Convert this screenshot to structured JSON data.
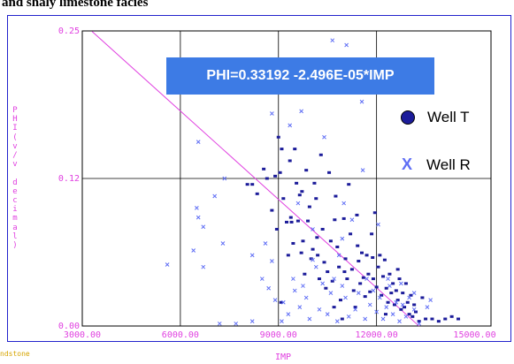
{
  "caption": "and shaly limestone facies",
  "equation": "PHI=0.33192 -2.496E-05*IMP",
  "corner_text": "ndstone",
  "colors": {
    "well_t": "#1c1c9a",
    "well_r": "#5f6ef5",
    "trend": "#e040e0",
    "axis_text": "#e040e0",
    "frame": "#2222cc",
    "equation_box": "#3d7be5"
  },
  "chart_data": {
    "type": "scatter",
    "xlabel": "IMP",
    "ylabel": "PHI(v/v decimal)",
    "xlim": [
      3000,
      15500
    ],
    "ylim": [
      0,
      0.25
    ],
    "x_ticks": [
      {
        "value": 3000,
        "label": "3000.00"
      },
      {
        "value": 6000,
        "label": "6000.00"
      },
      {
        "value": 9000,
        "label": "9000.00"
      },
      {
        "value": 12000,
        "label": "12000.00"
      },
      {
        "value": 15000,
        "label": "15000.00"
      }
    ],
    "y_ticks": [
      {
        "value": 0,
        "label": "0.00"
      },
      {
        "value": 0.125,
        "label": "0.12"
      },
      {
        "value": 0.25,
        "label": "0.25"
      }
    ],
    "grid_x": [
      6000,
      9000,
      12000
    ],
    "grid_y": [
      0.125
    ],
    "grid": true,
    "legend": "right",
    "trend_line": {
      "intercept": 0.33192,
      "slope": -2.496e-05,
      "x_from": 3300,
      "x_to": 13300
    },
    "series": [
      {
        "name": "Well T",
        "marker": "dot",
        "points": [
          [
            8050,
            0.12
          ],
          [
            8200,
            0.12
          ],
          [
            8350,
            0.112
          ],
          [
            8550,
            0.133
          ],
          [
            8650,
            0.125
          ],
          [
            8800,
            0.098
          ],
          [
            8900,
            0.127
          ],
          [
            8950,
            0.082
          ],
          [
            9000,
            0.16
          ],
          [
            9050,
            0.13
          ],
          [
            9100,
            0.15
          ],
          [
            9150,
            0.108
          ],
          [
            9250,
            0.088
          ],
          [
            9300,
            0.06
          ],
          [
            9350,
            0.14
          ],
          [
            9400,
            0.088
          ],
          [
            9450,
            0.07
          ],
          [
            9500,
            0.15
          ],
          [
            9550,
            0.121
          ],
          [
            9600,
            0.089
          ],
          [
            9650,
            0.111
          ],
          [
            9700,
            0.062
          ],
          [
            9750,
            0.072
          ],
          [
            9800,
            0.044
          ],
          [
            9850,
            0.132
          ],
          [
            9900,
            0.089
          ],
          [
            9950,
            0.101
          ],
          [
            10000,
            0.057
          ],
          [
            10050,
            0.065
          ],
          [
            10100,
            0.121
          ],
          [
            10150,
            0.108
          ],
          [
            10200,
            0.06
          ],
          [
            10250,
            0.04
          ],
          [
            10300,
            0.145
          ],
          [
            10350,
            0.082
          ],
          [
            10400,
            0.054
          ],
          [
            10450,
            0.032
          ],
          [
            10500,
            0.046
          ],
          [
            10550,
            0.13
          ],
          [
            10600,
            0.072
          ],
          [
            10650,
            0.038
          ],
          [
            10700,
            0.016
          ],
          [
            10750,
            0.11
          ],
          [
            10800,
            0.067
          ],
          [
            10850,
            0.05
          ],
          [
            10900,
            0.022
          ],
          [
            10950,
            0.006
          ],
          [
            11000,
            0.091
          ],
          [
            11050,
            0.057
          ],
          [
            11100,
            0.04
          ],
          [
            11150,
            0.12
          ],
          [
            11200,
            0.078
          ],
          [
            11250,
            0.048
          ],
          [
            11300,
            0.03
          ],
          [
            11350,
            0.016
          ],
          [
            11400,
            0.094
          ],
          [
            11450,
            0.055
          ],
          [
            11500,
            0.036
          ],
          [
            11550,
            0.062
          ],
          [
            11600,
            0.041
          ],
          [
            11650,
            0.025
          ],
          [
            11700,
            0.06
          ],
          [
            11750,
            0.044
          ],
          [
            11800,
            0.029
          ],
          [
            11850,
            0.078
          ],
          [
            11900,
            0.04
          ],
          [
            11950,
            0.096
          ],
          [
            12000,
            0.033
          ],
          [
            12050,
            0.05
          ],
          [
            12100,
            0.06
          ],
          [
            12150,
            0.026
          ],
          [
            12200,
            0.042
          ],
          [
            12250,
            0.056
          ],
          [
            12300,
            0.032
          ],
          [
            12350,
            0.02
          ],
          [
            12400,
            0.044
          ],
          [
            12450,
            0.028
          ],
          [
            12500,
            0.036
          ],
          [
            12550,
            0.018
          ],
          [
            12600,
            0.03
          ],
          [
            12650,
            0.022
          ],
          [
            12700,
            0.04
          ],
          [
            12750,
            0.014
          ],
          [
            12800,
            0.028
          ],
          [
            12850,
            0.016
          ],
          [
            12900,
            0.036
          ],
          [
            12950,
            0.02
          ],
          [
            13000,
            0.01
          ],
          [
            13050,
            0.026
          ],
          [
            13100,
            0.008
          ],
          [
            13150,
            0.018
          ],
          [
            13200,
            0.012
          ],
          [
            13300,
            0.004
          ],
          [
            13500,
            0.006
          ],
          [
            13700,
            0.006
          ],
          [
            13900,
            0.004
          ],
          [
            14100,
            0.006
          ],
          [
            14300,
            0.008
          ],
          [
            14500,
            0.006
          ],
          [
            9080,
            0.02
          ],
          [
            9380,
            0.092
          ],
          [
            9720,
            0.114
          ],
          [
            10180,
            0.075
          ],
          [
            10720,
            0.09
          ],
          [
            11020,
            0.046
          ],
          [
            11420,
            0.068
          ],
          [
            11880,
            0.058
          ],
          [
            12280,
            0.01
          ],
          [
            12650,
            0.048
          ],
          [
            13400,
            0.024
          ]
        ]
      },
      {
        "name": "Well R",
        "marker": "x",
        "points": [
          [
            5600,
            0.052
          ],
          [
            6400,
            0.064
          ],
          [
            6700,
            0.05
          ],
          [
            6500,
            0.1
          ],
          [
            6550,
            0.092
          ],
          [
            6700,
            0.084
          ],
          [
            7050,
            0.11
          ],
          [
            7300,
            0.07
          ],
          [
            7350,
            0.125
          ],
          [
            7200,
            0.002
          ],
          [
            7700,
            0.002
          ],
          [
            8200,
            0.004
          ],
          [
            8600,
            0.07
          ],
          [
            8500,
            0.04
          ],
          [
            8700,
            0.032
          ],
          [
            8800,
            0.055
          ],
          [
            8800,
            0.18
          ],
          [
            8900,
            0.022
          ],
          [
            9100,
            0.004
          ],
          [
            9150,
            0.02
          ],
          [
            9300,
            0.01
          ],
          [
            9350,
            0.17
          ],
          [
            9450,
            0.04
          ],
          [
            9500,
            0.03
          ],
          [
            9600,
            0.104
          ],
          [
            9650,
            0.016
          ],
          [
            9750,
            0.034
          ],
          [
            9850,
            0.024
          ],
          [
            9950,
            0.006
          ],
          [
            10050,
            0.082
          ],
          [
            10150,
            0.05
          ],
          [
            10250,
            0.014
          ],
          [
            10350,
            0.036
          ],
          [
            10400,
            0.16
          ],
          [
            10500,
            0.01
          ],
          [
            10600,
            0.028
          ],
          [
            10700,
            0.04
          ],
          [
            10800,
            0.004
          ],
          [
            10850,
            0.06
          ],
          [
            10950,
            0.034
          ],
          [
            11050,
            0.024
          ],
          [
            11150,
            0.008
          ],
          [
            11250,
            0.09
          ],
          [
            11350,
            0.014
          ],
          [
            11450,
            0.028
          ],
          [
            11550,
            0.19
          ],
          [
            11650,
            0.006
          ],
          [
            11700,
            0.04
          ],
          [
            11800,
            0.018
          ],
          [
            11900,
            0.03
          ],
          [
            12000,
            0.012
          ],
          [
            12100,
            0.024
          ],
          [
            12200,
            0.006
          ],
          [
            12300,
            0.016
          ],
          [
            12400,
            0.034
          ],
          [
            12500,
            0.01
          ],
          [
            12600,
            0.02
          ],
          [
            12700,
            0.004
          ],
          [
            12800,
            0.018
          ],
          [
            12900,
            0.008
          ],
          [
            13000,
            0.024
          ],
          [
            13150,
            0.014
          ],
          [
            13300,
            0.002
          ],
          [
            13550,
            0.016
          ],
          [
            11080,
            0.238
          ],
          [
            10950,
            0.074
          ],
          [
            11580,
            0.132
          ],
          [
            12050,
            0.086
          ],
          [
            12750,
            0.036
          ],
          [
            13150,
            0.028
          ],
          [
            13650,
            0.022
          ],
          [
            12350,
            0.04
          ],
          [
            10050,
            0.056
          ],
          [
            9700,
            0.182
          ],
          [
            8200,
            0.06
          ],
          [
            6550,
            0.156
          ],
          [
            10650,
            0.242
          ],
          [
            11000,
            0.104
          ]
        ]
      }
    ]
  }
}
